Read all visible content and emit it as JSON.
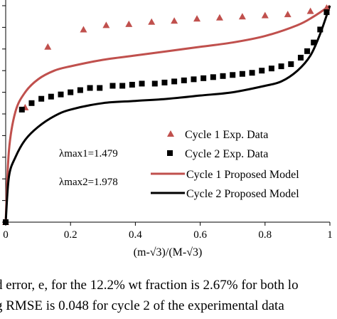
{
  "chart_data": {
    "type": "scatter",
    "xlabel": "(m-√3)/(M-√3)",
    "ylabel": "",
    "xlim": [
      0,
      1
    ],
    "x_ticks": [
      "0",
      "0.2",
      "0.4",
      "0.6",
      "0.8",
      "1"
    ],
    "grid": false,
    "legend_position": "bottom-right",
    "annotations": [
      "λmax1=1.479",
      "λmax2=1.978"
    ],
    "colors": {
      "cycle1": "#c0504d",
      "cycle2": "#000000"
    },
    "series": [
      {
        "name": "Cycle 1 Exp. Data",
        "kind": "marker",
        "marker": "triangle",
        "color": "#c0504d",
        "x": [
          0,
          0.06,
          0.13,
          0.24,
          0.31,
          0.38,
          0.45,
          0.52,
          0.59,
          0.66,
          0.73,
          0.8,
          0.87,
          0.94,
          0.99
        ],
        "y": [
          0.0,
          0.53,
          0.81,
          0.89,
          0.91,
          0.915,
          0.925,
          0.93,
          0.94,
          0.945,
          0.95,
          0.955,
          0.96,
          0.975,
          0.99
        ]
      },
      {
        "name": "Cycle 2 Exp. Data",
        "kind": "marker",
        "marker": "square",
        "color": "#000000",
        "x": [
          0,
          0.05,
          0.08,
          0.11,
          0.14,
          0.17,
          0.2,
          0.23,
          0.26,
          0.29,
          0.33,
          0.36,
          0.39,
          0.42,
          0.46,
          0.49,
          0.52,
          0.55,
          0.58,
          0.61,
          0.64,
          0.67,
          0.7,
          0.73,
          0.76,
          0.79,
          0.82,
          0.85,
          0.88,
          0.91,
          0.93,
          0.95,
          0.97,
          0.99
        ],
        "y": [
          0.0,
          0.52,
          0.55,
          0.57,
          0.58,
          0.59,
          0.6,
          0.61,
          0.62,
          0.62,
          0.63,
          0.63,
          0.635,
          0.64,
          0.64,
          0.645,
          0.65,
          0.655,
          0.66,
          0.665,
          0.67,
          0.675,
          0.68,
          0.685,
          0.69,
          0.7,
          0.71,
          0.72,
          0.73,
          0.76,
          0.79,
          0.83,
          0.89,
          0.97
        ]
      },
      {
        "name": "Cycle 1 Proposed Model",
        "kind": "line",
        "color": "#c0504d",
        "x": [
          0,
          0.01,
          0.03,
          0.06,
          0.1,
          0.15,
          0.2,
          0.3,
          0.4,
          0.5,
          0.6,
          0.7,
          0.8,
          0.9,
          0.95,
          1.0
        ],
        "y": [
          0.0,
          0.33,
          0.51,
          0.6,
          0.66,
          0.7,
          0.72,
          0.75,
          0.77,
          0.79,
          0.81,
          0.83,
          0.86,
          0.91,
          0.95,
          1.0
        ]
      },
      {
        "name": "Cycle 2 Proposed Model",
        "kind": "line",
        "color": "#000000",
        "x": [
          0,
          0.01,
          0.03,
          0.06,
          0.1,
          0.15,
          0.2,
          0.3,
          0.4,
          0.5,
          0.6,
          0.7,
          0.8,
          0.85,
          0.9,
          0.94,
          0.97,
          1.0
        ],
        "y": [
          0.0,
          0.21,
          0.3,
          0.38,
          0.44,
          0.49,
          0.52,
          0.55,
          0.56,
          0.57,
          0.585,
          0.6,
          0.63,
          0.65,
          0.7,
          0.77,
          0.87,
          1.0
        ]
      }
    ]
  },
  "caption": {
    "line1": "d error, e, for the 12.2% wt fraction is 2.67% for both lo",
    "line2": "g RMSE is 0.048 for cycle 2 of the experimental data"
  }
}
